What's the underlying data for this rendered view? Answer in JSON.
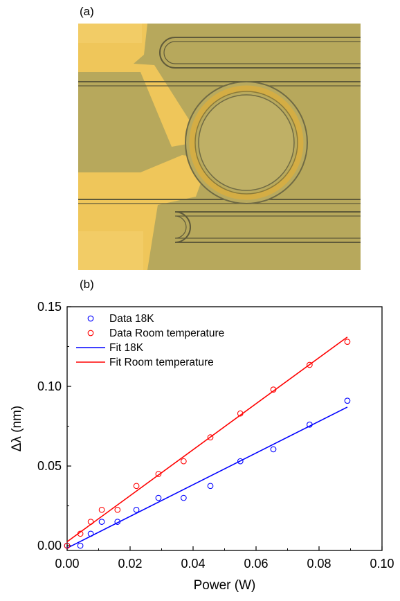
{
  "panels": {
    "a_label": "(a)",
    "b_label": "(b)"
  },
  "micrograph": {
    "colors": {
      "background": "#b7a85c",
      "gold": "#efc65a",
      "ring": "#c9a23c",
      "waveguide": "#5f5a3a"
    }
  },
  "chart_data": {
    "type": "scatter",
    "xlabel": "Power (W)",
    "ylabel": "Δλ (nm)",
    "xlim": [
      0.0,
      0.1
    ],
    "ylim": [
      -0.003,
      0.15
    ],
    "xticks": [
      "0.00",
      "0.02",
      "0.04",
      "0.06",
      "0.08",
      "0.10"
    ],
    "yticks": [
      "0.00",
      "0.05",
      "0.10",
      "0.15"
    ],
    "grid": false,
    "legend_position": "top-left",
    "series": [
      {
        "name": "Data 18K",
        "kind": "markers",
        "color": "#0000ff",
        "x": [
          0.0,
          0.0042,
          0.0075,
          0.011,
          0.016,
          0.022,
          0.029,
          0.037,
          0.0455,
          0.055,
          0.0655,
          0.077,
          0.089
        ],
        "y": [
          0.0,
          0.0,
          0.0075,
          0.015,
          0.015,
          0.0225,
          0.03,
          0.03,
          0.0375,
          0.053,
          0.0605,
          0.076,
          0.091
        ]
      },
      {
        "name": "Data Room temperature",
        "kind": "markers",
        "color": "#ff0000",
        "x": [
          0.0,
          0.0042,
          0.0075,
          0.011,
          0.016,
          0.022,
          0.029,
          0.037,
          0.0455,
          0.055,
          0.0655,
          0.077,
          0.089
        ],
        "y": [
          0.0,
          0.0075,
          0.015,
          0.0225,
          0.0225,
          0.0375,
          0.045,
          0.053,
          0.068,
          0.083,
          0.098,
          0.1135,
          0.128
        ]
      },
      {
        "name": "Fit 18K",
        "kind": "line",
        "color": "#0000ff",
        "x": [
          0.0,
          0.089
        ],
        "y": [
          -0.0015,
          0.087
        ]
      },
      {
        "name": "Fit Room temperature",
        "kind": "line",
        "color": "#ff0000",
        "x": [
          0.0,
          0.089
        ],
        "y": [
          0.0025,
          0.131
        ]
      }
    ]
  }
}
